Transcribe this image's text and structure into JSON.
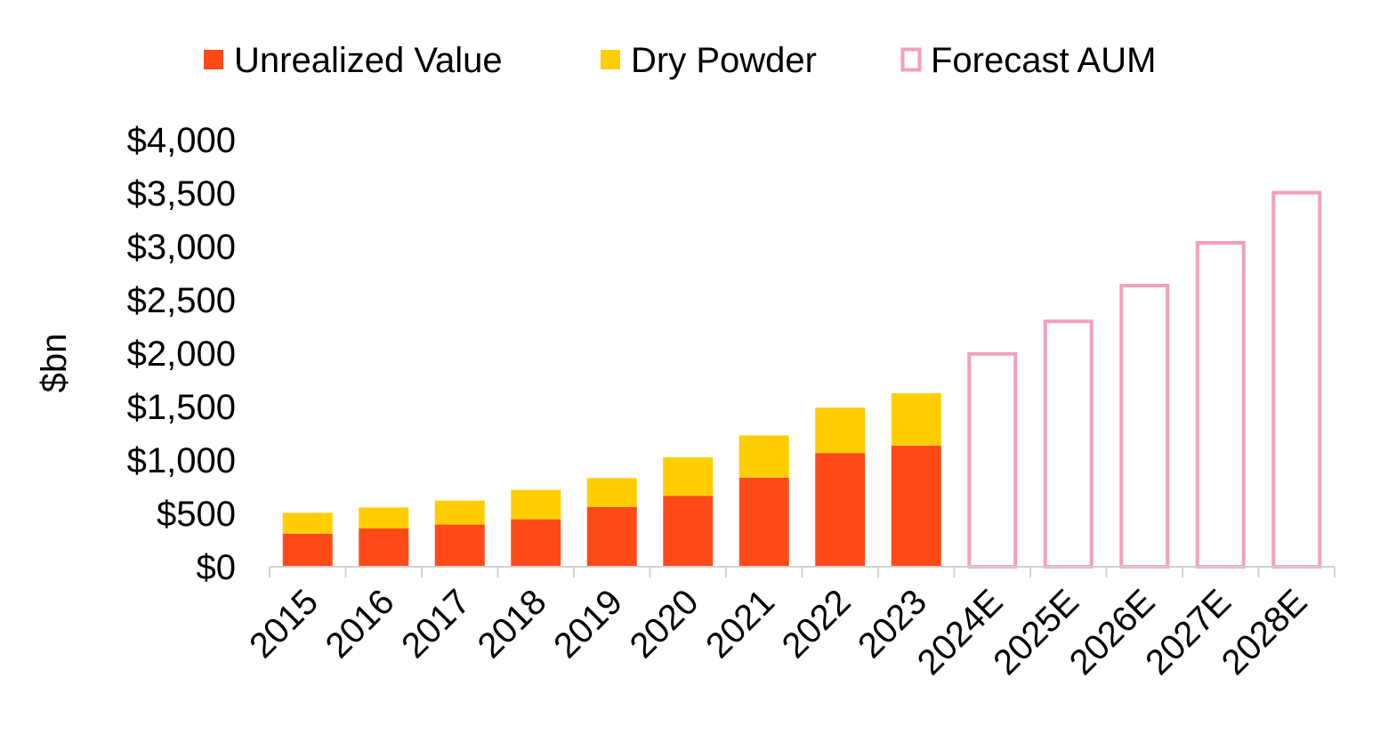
{
  "chart_data": {
    "type": "bar",
    "stacked": true,
    "title": "",
    "xlabel": "",
    "ylabel": "$bn",
    "ylim": [
      0,
      4000
    ],
    "yticks": [
      0,
      500,
      1000,
      1500,
      2000,
      2500,
      3000,
      3500,
      4000
    ],
    "ytick_labels": [
      "$0",
      "$500",
      "$1,000",
      "$1,500",
      "$2,000",
      "$2,500",
      "$3,000",
      "$3,500",
      "$4,000"
    ],
    "categories": [
      "2015",
      "2016",
      "2017",
      "2018",
      "2019",
      "2020",
      "2021",
      "2022",
      "2023",
      "2024E",
      "2025E",
      "2026E",
      "2027E",
      "2028E"
    ],
    "series": [
      {
        "name": "Unrealized Value",
        "color": "#FF4A17",
        "style": "filled",
        "values": [
          310,
          360,
          395,
          445,
          560,
          665,
          835,
          1065,
          1135,
          null,
          null,
          null,
          null,
          null
        ]
      },
      {
        "name": "Dry Powder",
        "color": "#FFCD00",
        "style": "filled",
        "values": [
          195,
          195,
          225,
          275,
          270,
          360,
          395,
          425,
          490,
          null,
          null,
          null,
          null,
          null
        ]
      },
      {
        "name": "Forecast AUM",
        "color": "#F5A0B8",
        "style": "outline",
        "values": [
          null,
          null,
          null,
          null,
          null,
          null,
          null,
          null,
          null,
          2010,
          2315,
          2650,
          3050,
          3520
        ]
      }
    ],
    "legend_position": "top",
    "grid": false
  }
}
